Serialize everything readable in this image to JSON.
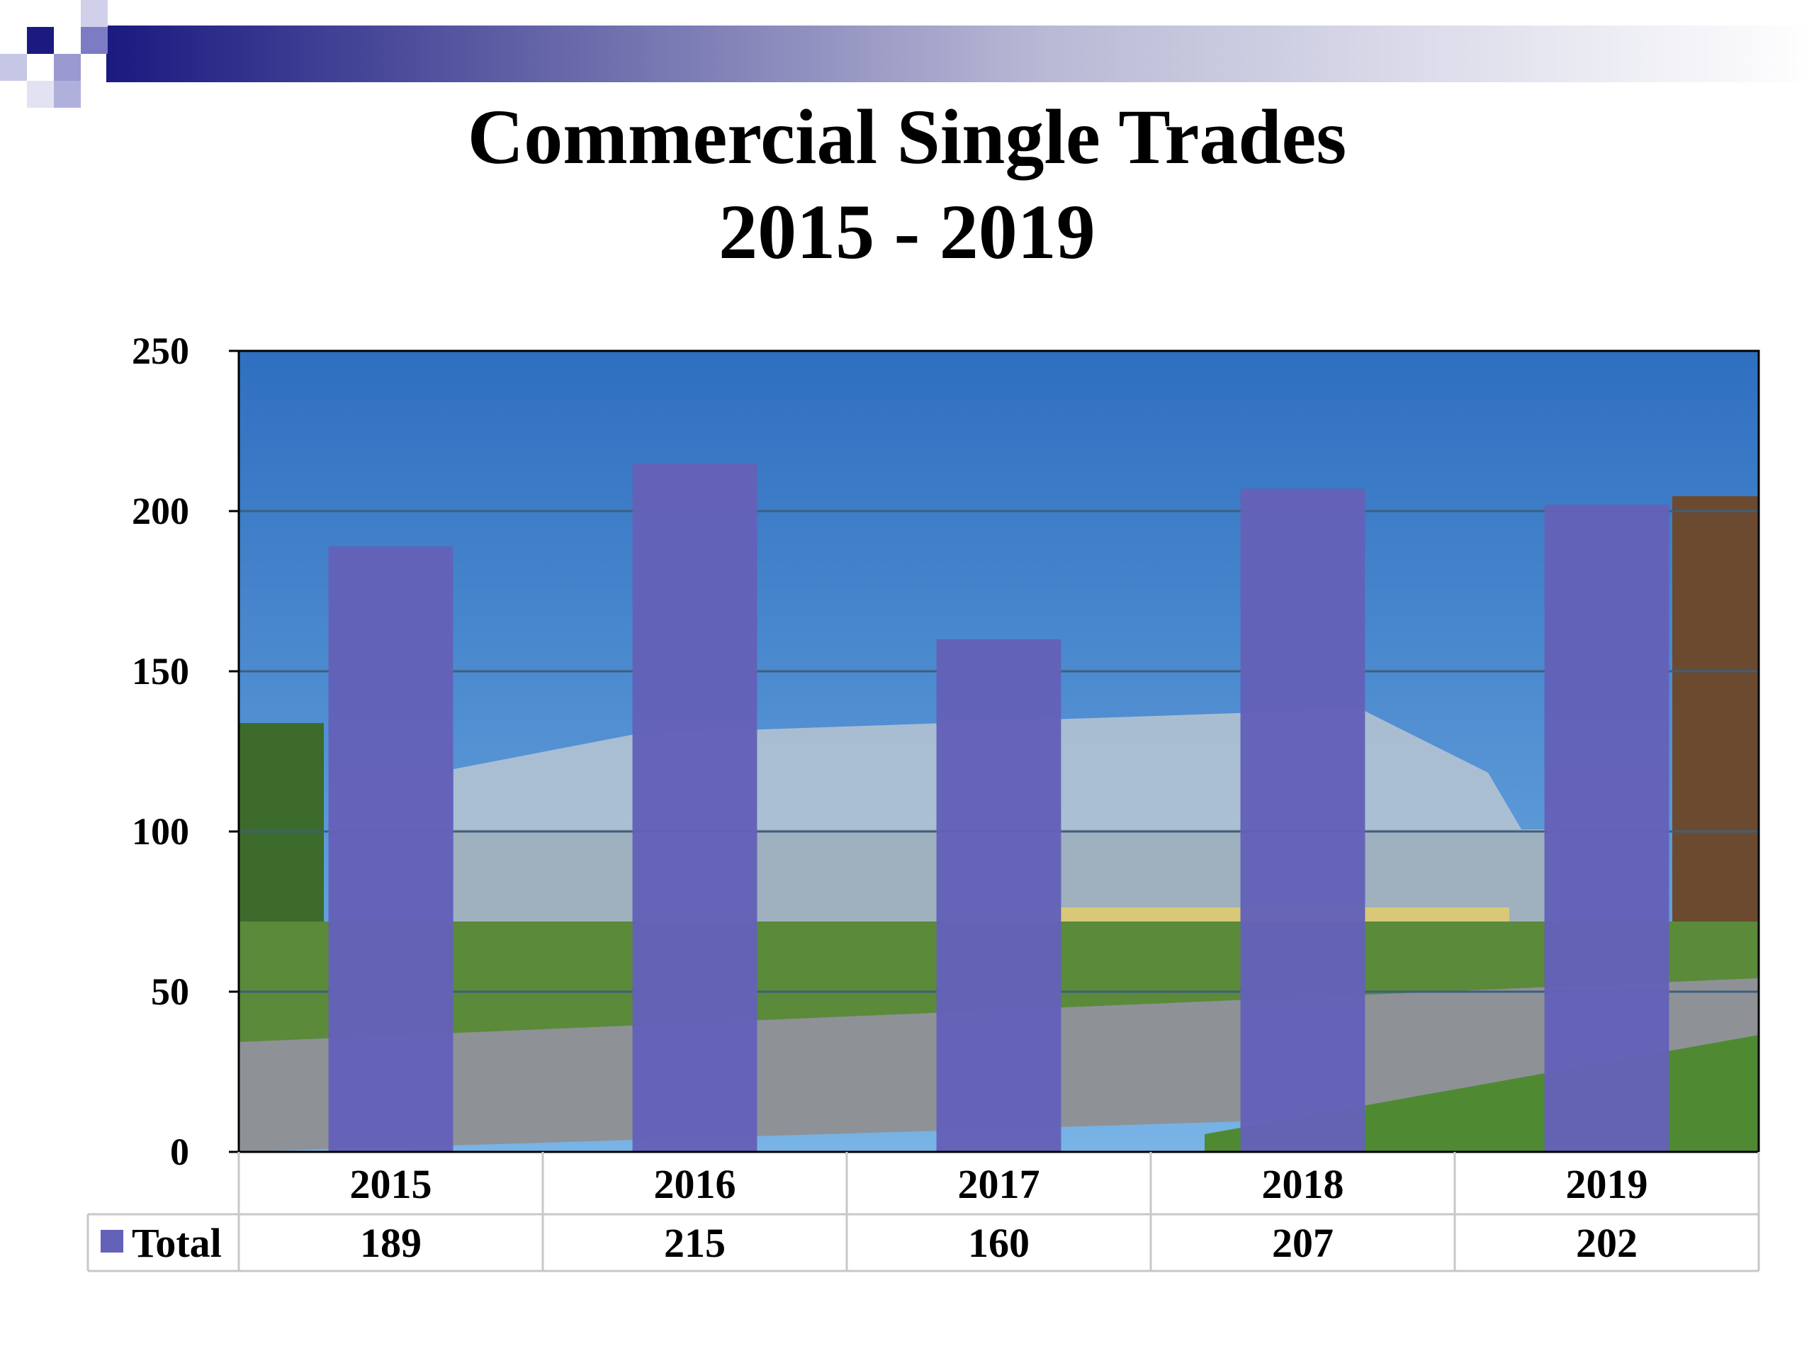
{
  "slide": {
    "title_line1": "Commercial Single Trades",
    "title_line2": "2015 - 2019"
  },
  "colors": {
    "bar": "#6461b8",
    "header_gradient_start": "#1a1a80",
    "header_gradient_end": "#ffffff",
    "sky_top": "#2f6fc0",
    "sky_bottom": "#6aa8e0",
    "grass": "#5a8a3a",
    "road": "#8e9296",
    "gridline": "#3d5f7d"
  },
  "chart_data": {
    "type": "bar",
    "categories": [
      "2015",
      "2016",
      "2017",
      "2018",
      "2019"
    ],
    "series": [
      {
        "name": "Total",
        "values": [
          189,
          215,
          160,
          207,
          202
        ]
      }
    ],
    "title": "Commercial Single Trades 2015 - 2019",
    "xlabel": "",
    "ylabel": "",
    "ylim": [
      0,
      250
    ],
    "yticks": [
      0,
      50,
      100,
      150,
      200,
      250
    ],
    "grid": true,
    "legend": "data-table",
    "background": "photo of steel-frame building construction site"
  }
}
